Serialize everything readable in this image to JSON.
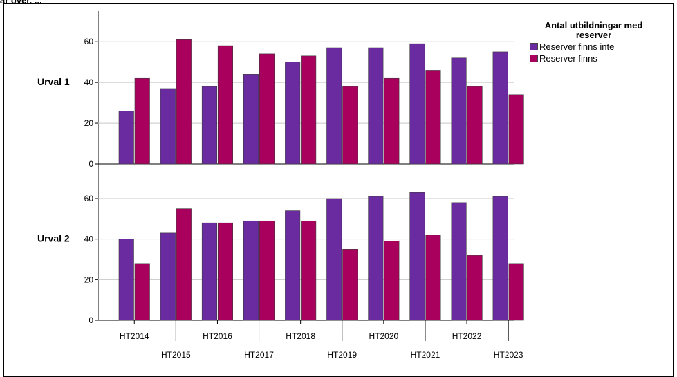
{
  "clipped_text": "ar over, ...",
  "chart_data": {
    "type": "bar",
    "categories": [
      "HT2014",
      "HT2015",
      "HT2016",
      "HT2017",
      "HT2018",
      "HT2019",
      "HT2020",
      "HT2021",
      "HT2022",
      "HT2023"
    ],
    "legend": {
      "title": "Antal utbildningar med reserver",
      "placement": "top-right",
      "entries": [
        "Reserver finns inte",
        "Reserver finns"
      ]
    },
    "colors": {
      "Reserver finns inte": "#6a2aa0",
      "Reserver finns": "#a8005c"
    },
    "ylim": [
      0,
      75
    ],
    "yticks": [
      0,
      20,
      40,
      60
    ],
    "grid": true,
    "panels": [
      {
        "label": "Urval 1",
        "series": [
          {
            "name": "Reserver finns inte",
            "values": [
              26,
              37,
              38,
              44,
              50,
              57,
              57,
              59,
              52,
              55
            ]
          },
          {
            "name": "Reserver finns",
            "values": [
              42,
              61,
              58,
              54,
              53,
              38,
              42,
              46,
              38,
              34
            ]
          }
        ]
      },
      {
        "label": "Urval 2",
        "series": [
          {
            "name": "Reserver finns inte",
            "values": [
              40,
              43,
              48,
              49,
              54,
              60,
              61,
              63,
              58,
              61
            ]
          },
          {
            "name": "Reserver finns",
            "values": [
              28,
              55,
              48,
              49,
              49,
              35,
              39,
              42,
              32,
              28
            ]
          }
        ]
      }
    ]
  }
}
